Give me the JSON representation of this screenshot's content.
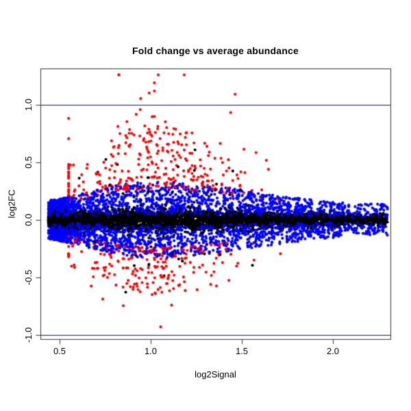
{
  "chart_data": {
    "type": "scatter",
    "title": "Fold change vs average abundance",
    "xlabel": "log2Signal",
    "ylabel": "log2FC",
    "xlim": [
      0.395,
      2.316
    ],
    "ylim": [
      -1.036,
      1.315
    ],
    "grid": false,
    "legend": "none",
    "background": "#ffffff",
    "axis_color": "#333333",
    "x_ticks": [
      {
        "value": 0.5,
        "label": "0.5"
      },
      {
        "value": 1.0,
        "label": "1.0"
      },
      {
        "value": 1.5,
        "label": "1.5"
      },
      {
        "value": 2.0,
        "label": "2.0"
      }
    ],
    "y_ticks": [
      {
        "value": -1.0,
        "label": "-1.0"
      },
      {
        "value": -0.5,
        "label": "-0.5"
      },
      {
        "value": 0.0,
        "label": "0.0"
      },
      {
        "value": 0.5,
        "label": "0.5"
      },
      {
        "value": 1.0,
        "label": "1.0"
      }
    ],
    "hlines": [
      {
        "y": 1.0,
        "color": "#0000ff"
      },
      {
        "y": -1.0,
        "color": "#0000ff"
      }
    ],
    "marker": {
      "shape": "filled-circle",
      "radius_px": 2.1
    },
    "summary": "MA-plot style scatter of ~8300 probes. Dense black band at log2FC ~ 0 (|FC|<~0.1) across log2Signal 0.45-2.3 with a tight cluster near x=0.5 and a thin tail to x=2.25. Blue points form bands at |FC| ~0.05-0.33 (scaled down toward both x extremes). Red points lie outside (|FC|>~0.25), reaching +1.25 above and -0.9 below, concentrated at x 0.6-1.7. Blue reference lines at log2FC = +1 and -1.",
    "seed": 20240613,
    "envelope": {
      "center": 1.0,
      "sigma_left": 0.33,
      "sigma_right": 0.55,
      "floor": 0.1,
      "band_floor": 0.35,
      "band_gain": 0.65
    },
    "x_dist": {
      "min": 0.45,
      "span": 1.85,
      "pow": 1.3,
      "cluster_frac": 0.14,
      "cluster_mean": 0.5,
      "cluster_sd": 0.035,
      "taper_from": 2.05,
      "taper_drop": 0.45
    },
    "series": [
      {
        "name": "black-points",
        "color": "#000000",
        "n": 4300,
        "gen": "core",
        "sigma_base": 0.021,
        "sigma_gain": 0.027
      },
      {
        "name": "black-outlier-points",
        "color": "#000000",
        "n": 55,
        "gen": "outlier",
        "y_base": 0.13,
        "y_spread": 0.17,
        "y_max": 0.68,
        "x_mean": 1.0,
        "x_sd": 0.27
      },
      {
        "name": "blue-points",
        "color": "#0000ff",
        "n": 3400,
        "gen": "band",
        "y_base": 0.05,
        "y_range": 0.28,
        "y_pow": 1.35
      },
      {
        "name": "red-up-points",
        "color": "#ff0000",
        "n": 330,
        "gen": "flag",
        "sign": 1,
        "y_base": 0.27,
        "y_range": 0.55,
        "y_pow": 1.7,
        "boost_p": 0.05,
        "boost": 0.6,
        "y_clip": 1.26,
        "x_mean": 1.02,
        "x_sd": 0.3
      },
      {
        "name": "red-down-points",
        "color": "#ff0000",
        "n": 240,
        "gen": "flag",
        "sign": -1,
        "y_base": 0.24,
        "y_range": 0.42,
        "y_pow": 1.6,
        "boost_p": 0.04,
        "boost": 0.4,
        "y_clip": 0.93,
        "x_mean": 1.0,
        "x_sd": 0.28
      }
    ]
  }
}
